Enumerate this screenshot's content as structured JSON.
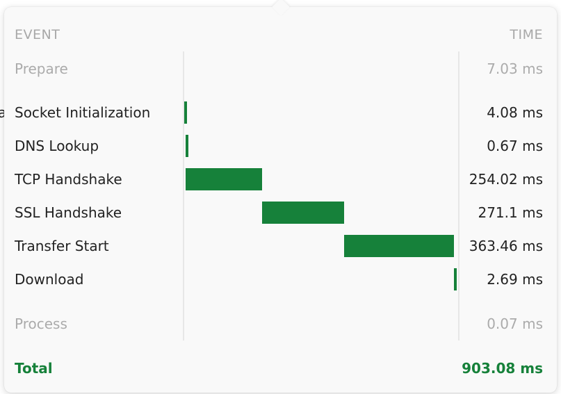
{
  "stray_text": "a",
  "header": {
    "event": "EVENT",
    "time": "TIME"
  },
  "colors": {
    "bar": "#16813a",
    "total": "#16813a",
    "muted": "#ababab"
  },
  "timeline": {
    "total_ms": 903.08
  },
  "rows": [
    {
      "label": "Prepare",
      "time": "7.03 ms",
      "ms": 7.03,
      "start_ms": 0,
      "muted": true
    },
    {
      "label": "Socket Initialization",
      "time": "4.08 ms",
      "ms": 4.08,
      "start_ms": 0
    },
    {
      "label": "DNS Lookup",
      "time": "0.67 ms",
      "ms": 0.67,
      "start_ms": 4.08
    },
    {
      "label": "TCP Handshake",
      "time": "254.02 ms",
      "ms": 254.02,
      "start_ms": 4.75
    },
    {
      "label": "SSL Handshake",
      "time": "271.1 ms",
      "ms": 271.1,
      "start_ms": 258.77
    },
    {
      "label": "Transfer Start",
      "time": "363.46 ms",
      "ms": 363.46,
      "start_ms": 529.87
    },
    {
      "label": "Download",
      "time": "2.69 ms",
      "ms": 2.69,
      "start_ms": 893.33
    },
    {
      "label": "Process",
      "time": "0.07 ms",
      "ms": 0.07,
      "start_ms": 896.02,
      "muted": true
    }
  ],
  "total": {
    "label": "Total",
    "time": "903.08 ms"
  }
}
